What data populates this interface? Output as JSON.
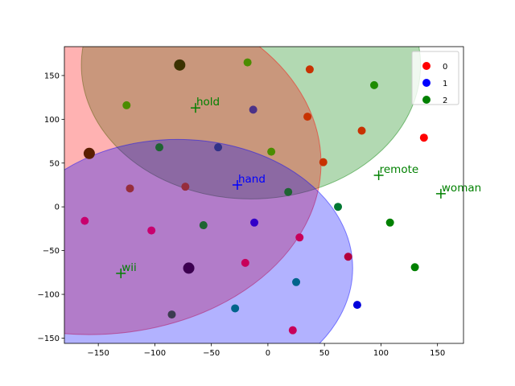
{
  "chart_data": {
    "type": "scatter",
    "title": "",
    "xlabel": "",
    "ylabel": "",
    "xlim": [
      -180,
      173
    ],
    "ylim": [
      -156,
      183
    ],
    "grid": false,
    "legend_position": "top-right",
    "x_ticks": [
      -150,
      -100,
      -50,
      0,
      50,
      100,
      150
    ],
    "y_ticks": [
      -150,
      -100,
      -50,
      0,
      50,
      100,
      150
    ],
    "x_tick_labels": [
      "−150",
      "−100",
      "−50",
      "0",
      "50",
      "100",
      "150"
    ],
    "y_tick_labels": [
      "−150",
      "−100",
      "−50",
      "0",
      "50",
      "100",
      "150"
    ],
    "colors": {
      "0": "#ff0000",
      "1": "#0000ff",
      "2": "#008000"
    },
    "legend": [
      {
        "name": "0",
        "color": "#ff0000"
      },
      {
        "name": "1",
        "color": "#0000ff"
      },
      {
        "name": "2",
        "color": "#008000"
      }
    ],
    "regions": [
      {
        "group": "2",
        "cx": -15,
        "cy": 162,
        "rx": 150,
        "ry": 153,
        "color": "#008000",
        "opacity": 0.3
      },
      {
        "group": "0",
        "cx": -158,
        "cy": 50,
        "rx": 205,
        "ry": 196,
        "color": "#ff0000",
        "opacity": 0.3
      },
      {
        "group": "1",
        "cx": -80,
        "cy": -70,
        "rx": 155,
        "ry": 147,
        "color": "#0000ff",
        "opacity": 0.3
      }
    ],
    "points": [
      {
        "x": 37,
        "y": 157,
        "group": "0",
        "color": "#c83200"
      },
      {
        "x": 35,
        "y": 103,
        "group": "0",
        "color": "#c83200"
      },
      {
        "x": 83,
        "y": 87,
        "group": "0",
        "color": "#c83200"
      },
      {
        "x": 138,
        "y": 79,
        "group": "0",
        "color": "#ff0000"
      },
      {
        "x": 49,
        "y": 51,
        "group": "0",
        "color": "#c83200"
      },
      {
        "x": -18,
        "y": 165,
        "group": "2",
        "color": "#4b8c00"
      },
      {
        "x": -125,
        "y": 116,
        "group": "2",
        "color": "#4b8c00"
      },
      {
        "x": -13,
        "y": 111,
        "group": "1",
        "color": "#4b3288"
      },
      {
        "x": 94,
        "y": 139,
        "group": "2",
        "color": "#1e8c00"
      },
      {
        "x": 3,
        "y": 63,
        "group": "2",
        "color": "#4b8c00"
      },
      {
        "x": -96,
        "y": 68,
        "group": "2",
        "color": "#1e6432"
      },
      {
        "x": -44,
        "y": 68,
        "group": "1",
        "color": "#323288"
      },
      {
        "x": -122,
        "y": 21,
        "group": "0",
        "color": "#962d3c"
      },
      {
        "x": -73,
        "y": 23,
        "group": "0",
        "color": "#962d3c"
      },
      {
        "x": 18,
        "y": 17,
        "group": "2",
        "color": "#1e6432"
      },
      {
        "x": 62,
        "y": 0,
        "group": "2",
        "color": "#007832"
      },
      {
        "x": 108,
        "y": -18,
        "group": "2",
        "color": "#008000"
      },
      {
        "x": 130,
        "y": -69,
        "group": "2",
        "color": "#008000"
      },
      {
        "x": -57,
        "y": -21,
        "group": "2",
        "color": "#1e6432"
      },
      {
        "x": -12,
        "y": -18,
        "group": "1",
        "color": "#3200c8"
      },
      {
        "x": -162,
        "y": -16,
        "group": "0",
        "color": "#c8006e"
      },
      {
        "x": -103,
        "y": -27,
        "group": "0",
        "color": "#c8006e"
      },
      {
        "x": 28,
        "y": -35,
        "group": "0",
        "color": "#c8005a"
      },
      {
        "x": 71,
        "y": -57,
        "group": "0",
        "color": "#b4003c"
      },
      {
        "x": -20,
        "y": -64,
        "group": "0",
        "color": "#c8005a"
      },
      {
        "x": 25,
        "y": -86,
        "group": "2",
        "color": "#00648c"
      },
      {
        "x": 79,
        "y": -112,
        "group": "1",
        "color": "#0000dc"
      },
      {
        "x": -29,
        "y": -116,
        "group": "2",
        "color": "#00648c"
      },
      {
        "x": -85,
        "y": -123,
        "group": "2",
        "color": "#3c3c50"
      },
      {
        "x": 22,
        "y": -141,
        "group": "0",
        "color": "#c8005a"
      },
      {
        "x": -78,
        "y": 162,
        "group": "2",
        "color": "#3c3200",
        "large": true
      },
      {
        "x": -158,
        "y": 61,
        "group": "0",
        "color": "#5a1e00",
        "large": true
      },
      {
        "x": -70,
        "y": -70,
        "group": "1",
        "color": "#3c0050",
        "large": true
      }
    ],
    "annotations": [
      {
        "text": "hold",
        "x": -64,
        "y": 113,
        "color": "#008000"
      },
      {
        "text": "hand",
        "x": -27,
        "y": 25,
        "color": "#0000ff"
      },
      {
        "text": "remote",
        "x": 98,
        "y": 36,
        "color": "#008000"
      },
      {
        "text": "woman",
        "x": 153,
        "y": 15,
        "color": "#008000"
      },
      {
        "text": "wii",
        "x": -130,
        "y": -76,
        "color": "#008000"
      }
    ]
  }
}
